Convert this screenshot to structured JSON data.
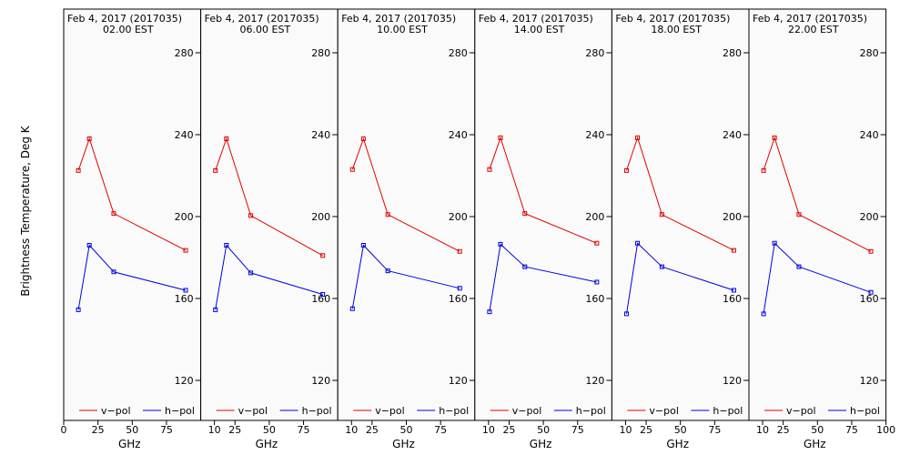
{
  "figure": {
    "ylabel": "Brightness Temperature, Deg K",
    "xlabel": "GHz",
    "background_color": "#fafafa",
    "colors": {
      "v_pol": "#e00000",
      "h_pol": "#0000e0"
    }
  },
  "chart_data": [
    {
      "type": "line",
      "title": "Feb  4, 2017 (2017035)",
      "subtitle": "02.00 EST",
      "xlabel": "GHz",
      "ylabel": "Brightness Temperature, Deg K",
      "xlim": [
        0,
        100
      ],
      "ylim": [
        100,
        295
      ],
      "x_ticks": [
        0,
        25,
        50,
        75
      ],
      "y_ticks": [
        120,
        160,
        200,
        240,
        280
      ],
      "legend": "bottom",
      "series": [
        {
          "name": "v−pol",
          "color": "#e00000",
          "x": [
            10.7,
            18.7,
            36.5,
            89.0
          ],
          "y": [
            222.5,
            238,
            201.5,
            183.5
          ]
        },
        {
          "name": "h−pol",
          "color": "#0000e0",
          "x": [
            10.7,
            18.7,
            36.5,
            89.0
          ],
          "y": [
            154.5,
            186,
            173,
            164
          ]
        }
      ]
    },
    {
      "type": "line",
      "title": "Feb  4, 2017 (2017035)",
      "subtitle": "06.00 EST",
      "xlabel": "GHz",
      "xlim": [
        0,
        100
      ],
      "ylim": [
        100,
        295
      ],
      "x_ticks": [
        10,
        25,
        50,
        75
      ],
      "y_ticks": [
        120,
        160,
        200,
        240,
        280
      ],
      "legend": "bottom",
      "series": [
        {
          "name": "v−pol",
          "color": "#e00000",
          "x": [
            10.7,
            18.7,
            36.5,
            89.0
          ],
          "y": [
            222.5,
            238,
            200.5,
            181
          ]
        },
        {
          "name": "h−pol",
          "color": "#0000e0",
          "x": [
            10.7,
            18.7,
            36.5,
            89.0
          ],
          "y": [
            154.5,
            186,
            172.5,
            162
          ]
        }
      ]
    },
    {
      "type": "line",
      "title": "Feb  4, 2017 (2017035)",
      "subtitle": "10.00 EST",
      "xlabel": "GHz",
      "xlim": [
        0,
        100
      ],
      "ylim": [
        100,
        295
      ],
      "x_ticks": [
        10,
        25,
        50,
        75
      ],
      "y_ticks": [
        120,
        160,
        200,
        240,
        280
      ],
      "legend": "bottom",
      "series": [
        {
          "name": "v−pol",
          "color": "#e00000",
          "x": [
            10.7,
            18.7,
            36.5,
            89.0
          ],
          "y": [
            223,
            238,
            201,
            183
          ]
        },
        {
          "name": "h−pol",
          "color": "#0000e0",
          "x": [
            10.7,
            18.7,
            36.5,
            89.0
          ],
          "y": [
            155,
            186,
            173.5,
            165
          ]
        }
      ]
    },
    {
      "type": "line",
      "title": "Feb  4, 2017 (2017035)",
      "subtitle": "14.00 EST",
      "xlabel": "GHz",
      "xlim": [
        0,
        100
      ],
      "ylim": [
        100,
        295
      ],
      "x_ticks": [
        10,
        25,
        50,
        75
      ],
      "y_ticks": [
        120,
        160,
        200,
        240,
        280
      ],
      "legend": "bottom",
      "series": [
        {
          "name": "v−pol",
          "color": "#e00000",
          "x": [
            10.7,
            18.7,
            36.5,
            89.0
          ],
          "y": [
            223,
            238.5,
            201.5,
            187
          ]
        },
        {
          "name": "h−pol",
          "color": "#0000e0",
          "x": [
            10.7,
            18.7,
            36.5,
            89.0
          ],
          "y": [
            153.5,
            186.5,
            175.5,
            168
          ]
        }
      ]
    },
    {
      "type": "line",
      "title": "Feb  4, 2017 (2017035)",
      "subtitle": "18.00 EST",
      "xlabel": "GHz",
      "xlim": [
        0,
        100
      ],
      "ylim": [
        100,
        295
      ],
      "x_ticks": [
        10,
        25,
        50,
        75
      ],
      "y_ticks": [
        120,
        160,
        200,
        240,
        280
      ],
      "legend": "bottom",
      "series": [
        {
          "name": "v−pol",
          "color": "#e00000",
          "x": [
            10.7,
            18.7,
            36.5,
            89.0
          ],
          "y": [
            222.5,
            238.5,
            201,
            183.5
          ]
        },
        {
          "name": "h−pol",
          "color": "#0000e0",
          "x": [
            10.7,
            18.7,
            36.5,
            89.0
          ],
          "y": [
            152.5,
            187,
            175.5,
            164
          ]
        }
      ]
    },
    {
      "type": "line",
      "title": "Feb  4, 2017 (2017035)",
      "subtitle": "22.00 EST",
      "xlabel": "GHz",
      "xlim": [
        0,
        100
      ],
      "ylim": [
        100,
        295
      ],
      "x_ticks": [
        10,
        25,
        50,
        75,
        100
      ],
      "y_ticks": [
        120,
        160,
        200,
        240,
        280
      ],
      "legend": "bottom",
      "series": [
        {
          "name": "v−pol",
          "color": "#e00000",
          "x": [
            10.7,
            18.7,
            36.5,
            89.0
          ],
          "y": [
            222.5,
            238.5,
            201,
            183
          ]
        },
        {
          "name": "h−pol",
          "color": "#0000e0",
          "x": [
            10.7,
            18.7,
            36.5,
            89.0
          ],
          "y": [
            152.5,
            187,
            175.5,
            163
          ]
        }
      ]
    }
  ]
}
